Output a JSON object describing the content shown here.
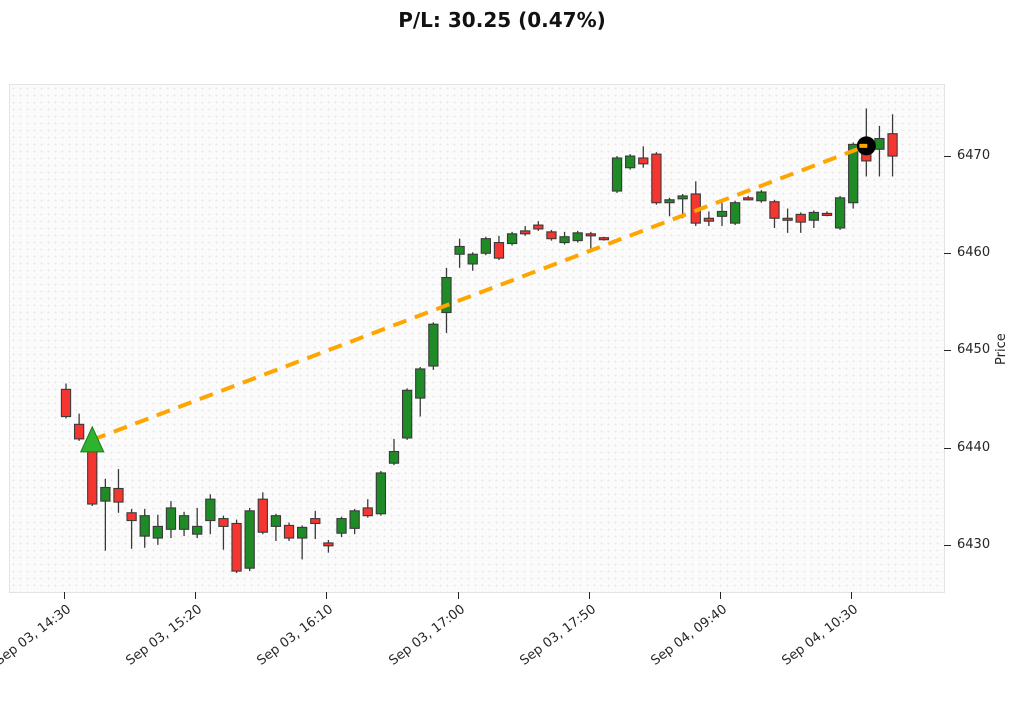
{
  "title": "P/L: 30.25 (0.47%)",
  "chart_data": {
    "type": "candlestick",
    "title": "P/L: 30.25 (0.47%)",
    "xlabel": "",
    "ylabel": "Price",
    "grid": false,
    "y_axis_side": "right",
    "y_ticks": [
      6430,
      6440,
      6450,
      6460,
      6470
    ],
    "ylim": [
      6425.2,
      6477.5
    ],
    "x_tick_labels": [
      {
        "index": 0,
        "label": "Sep 03, 14:30"
      },
      {
        "index": 10,
        "label": "Sep 03, 15:20"
      },
      {
        "index": 20,
        "label": "Sep 03, 16:10"
      },
      {
        "index": 30,
        "label": "Sep 03, 17:00"
      },
      {
        "index": 40,
        "label": "Sep 03, 17:50"
      },
      {
        "index": 50,
        "label": "Sep 04, 09:40"
      },
      {
        "index": 60,
        "label": "Sep 04, 10:30"
      }
    ],
    "candles_format": [
      "open",
      "high",
      "low",
      "close"
    ],
    "candles": [
      [
        6446.2,
        6446.8,
        6443.2,
        6443.4
      ],
      [
        6442.6,
        6443.7,
        6440.9,
        6441.1
      ],
      [
        6440.3,
        6440.7,
        6434.2,
        6434.4
      ],
      [
        6434.7,
        6437.0,
        6429.6,
        6436.1
      ],
      [
        6436.0,
        6438.0,
        6433.5,
        6434.6
      ],
      [
        6433.5,
        6433.9,
        6429.8,
        6432.7
      ],
      [
        6431.1,
        6433.9,
        6429.9,
        6433.2
      ],
      [
        6430.9,
        6433.3,
        6430.2,
        6432.1
      ],
      [
        6431.8,
        6434.7,
        6430.9,
        6434.0
      ],
      [
        6431.8,
        6433.6,
        6431.1,
        6433.2
      ],
      [
        6431.3,
        6434.0,
        6430.9,
        6432.1
      ],
      [
        6432.7,
        6435.4,
        6431.3,
        6434.9
      ],
      [
        6432.9,
        6433.2,
        6429.7,
        6432.1
      ],
      [
        6432.4,
        6432.8,
        6427.3,
        6427.5
      ],
      [
        6427.8,
        6434.0,
        6427.5,
        6433.7
      ],
      [
        6434.9,
        6435.6,
        6431.3,
        6431.5
      ],
      [
        6432.1,
        6433.4,
        6430.6,
        6433.2
      ],
      [
        6432.2,
        6432.5,
        6430.6,
        6430.9
      ],
      [
        6430.9,
        6432.2,
        6428.7,
        6432.0
      ],
      [
        6432.9,
        6433.7,
        6430.8,
        6432.4
      ],
      [
        6430.4,
        6430.7,
        6429.4,
        6430.1
      ],
      [
        6431.4,
        6433.1,
        6431.0,
        6432.9
      ],
      [
        6431.9,
        6433.9,
        6431.3,
        6433.7
      ],
      [
        6434.0,
        6434.9,
        6433.0,
        6433.2
      ],
      [
        6433.4,
        6437.8,
        6433.2,
        6437.6
      ],
      [
        6438.6,
        6441.1,
        6438.4,
        6439.8
      ],
      [
        6441.2,
        6446.3,
        6441.0,
        6446.1
      ],
      [
        6445.3,
        6448.5,
        6443.4,
        6448.3
      ],
      [
        6448.6,
        6453.1,
        6448.2,
        6452.9
      ],
      [
        6454.1,
        6458.7,
        6452.0,
        6457.7
      ],
      [
        6460.1,
        6461.7,
        6458.7,
        6460.9
      ],
      [
        6459.1,
        6460.3,
        6458.4,
        6460.1
      ],
      [
        6460.2,
        6461.9,
        6460.0,
        6461.7
      ],
      [
        6461.3,
        6462.0,
        6459.5,
        6459.7
      ],
      [
        6461.2,
        6462.4,
        6461.0,
        6462.2
      ],
      [
        6462.5,
        6463.0,
        6462.0,
        6462.2
      ],
      [
        6463.1,
        6463.5,
        6462.5,
        6462.7
      ],
      [
        6462.4,
        6462.6,
        6461.5,
        6461.7
      ],
      [
        6461.3,
        6462.4,
        6461.1,
        6461.9
      ],
      [
        6461.5,
        6462.5,
        6461.3,
        6462.3
      ],
      [
        6462.2,
        6462.4,
        6460.7,
        6462.1
      ],
      [
        6461.8,
        6461.9,
        6461.5,
        6461.7
      ],
      [
        6466.6,
        6470.2,
        6466.4,
        6470.0
      ],
      [
        6469.0,
        6470.4,
        6468.8,
        6470.2
      ],
      [
        6470.0,
        6471.2,
        6469.0,
        6469.4
      ],
      [
        6470.4,
        6470.6,
        6465.2,
        6465.4
      ],
      [
        6465.4,
        6465.9,
        6464.0,
        6465.7
      ],
      [
        6465.8,
        6466.3,
        6463.8,
        6466.1
      ],
      [
        6466.3,
        6467.6,
        6463.0,
        6463.3
      ],
      [
        6463.8,
        6464.5,
        6463.0,
        6463.5
      ],
      [
        6464.0,
        6465.4,
        6463.0,
        6464.5
      ],
      [
        6463.3,
        6465.6,
        6463.1,
        6465.4
      ],
      [
        6465.9,
        6466.1,
        6465.7,
        6465.8
      ],
      [
        6465.6,
        6466.7,
        6465.4,
        6466.5
      ],
      [
        6465.5,
        6465.7,
        6462.8,
        6463.8
      ],
      [
        6463.8,
        6464.8,
        6462.3,
        6463.6
      ],
      [
        6464.2,
        6464.4,
        6462.3,
        6463.4
      ],
      [
        6463.6,
        6464.6,
        6462.8,
        6464.4
      ],
      [
        6464.3,
        6464.5,
        6464.0,
        6464.2
      ],
      [
        6462.8,
        6466.1,
        6462.6,
        6465.9
      ],
      [
        6465.4,
        6471.6,
        6464.8,
        6471.4
      ],
      [
        6471.2,
        6475.1,
        6468.1,
        6469.7
      ],
      [
        6470.9,
        6473.3,
        6468.1,
        6472.0
      ],
      [
        6472.5,
        6474.5,
        6468.1,
        6470.2
      ]
    ],
    "markers": {
      "entry": {
        "index": 2,
        "price": 6441.0,
        "shape": "triangle-up",
        "color": "#2db32d"
      },
      "exit": {
        "index": 61,
        "price": 6471.25,
        "shape": "circle",
        "color": "#000000"
      }
    },
    "trade_line": {
      "style": "dashed",
      "color": "#ffa500",
      "from_price": 6441.0,
      "to_price": 6471.25
    },
    "colors": {
      "up": "#1f8b26",
      "down": "#f43530",
      "wick": "#3a3a3a",
      "body_edge": "#3a3a3a"
    }
  }
}
